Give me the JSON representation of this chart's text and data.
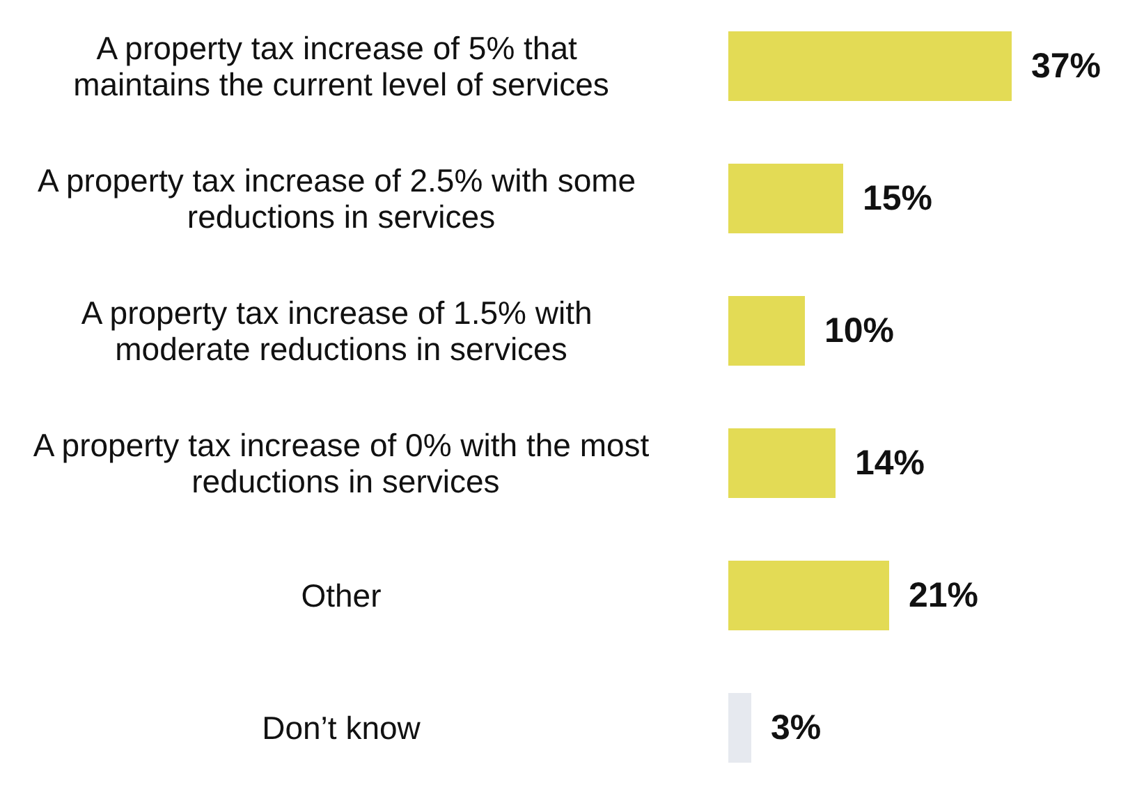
{
  "chart_data": {
    "type": "bar",
    "orientation": "horizontal",
    "categories": [
      "A property tax increase of 5% that maintains the current level of services",
      "A property tax increase of 2.5% with some reductions in services",
      "A property tax increase of 1.5% with moderate reductions in services",
      "A property tax increase of 0% with the most reductions in services",
      "Other",
      "Don’t know"
    ],
    "values": [
      37,
      15,
      10,
      14,
      21,
      3
    ],
    "colors": [
      "#e3db55",
      "#e3db55",
      "#e3db55",
      "#e3db55",
      "#e3db55",
      "#e6e9ef"
    ],
    "value_labels": [
      "37%",
      "15%",
      "10%",
      "14%",
      "21%",
      "3%"
    ]
  }
}
